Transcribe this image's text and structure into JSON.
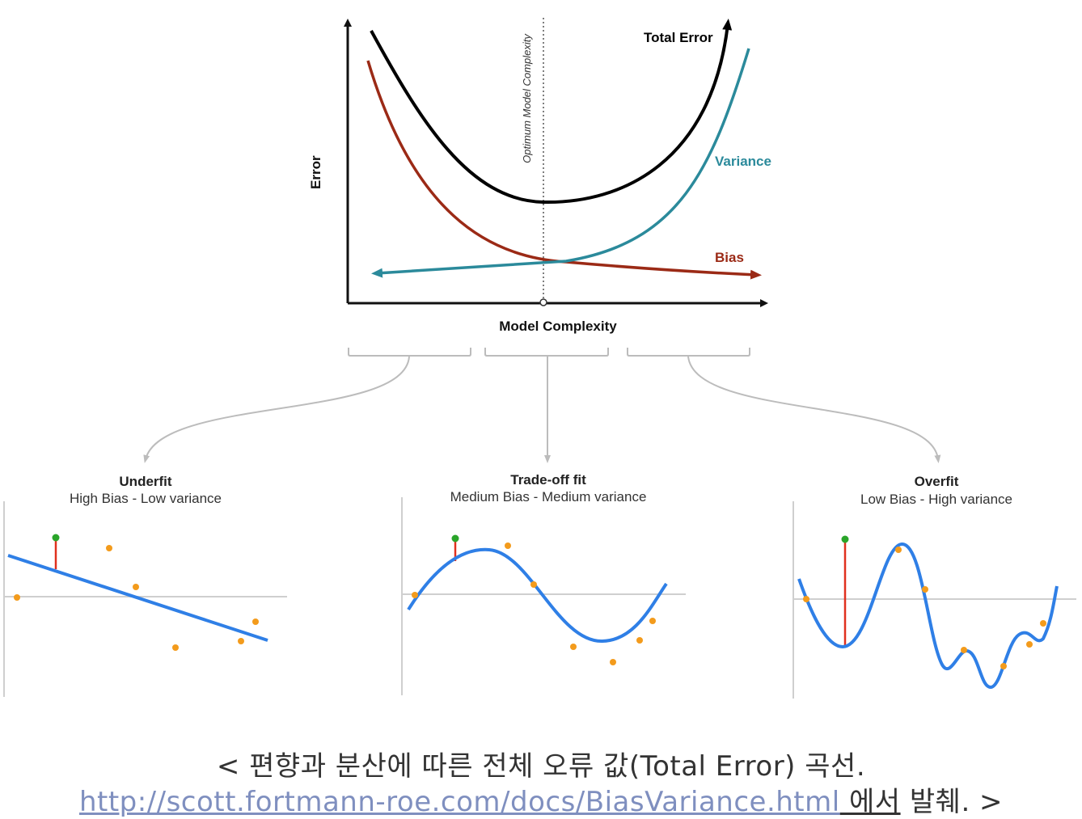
{
  "colors": {
    "total": "#000000",
    "bias": "#9b2a16",
    "variance": "#2b8a9b",
    "fit_line": "#2f7fe6",
    "points": "#f39b1c",
    "green_point": "#2aa52a",
    "residual": "#e0301e",
    "axis": "#111111",
    "connector": "#bcbcbc"
  },
  "chart_data": {
    "type": "line",
    "title": "",
    "xlabel": "Model Complexity",
    "ylabel": "Error",
    "optimum_label": "Optimum Model Complexity",
    "series": [
      {
        "name": "Total Error"
      },
      {
        "name": "Variance"
      },
      {
        "name": "Bias"
      }
    ]
  },
  "panels": [
    {
      "title": "Underfit",
      "subtitle": "High Bias - Low variance"
    },
    {
      "title": "Trade-off fit",
      "subtitle": "Medium Bias - Medium variance"
    },
    {
      "title": "Overfit",
      "subtitle": "Low Bias - High variance"
    }
  ],
  "caption": {
    "line1": "< 편향과 분산에 따른 전체 오류 값(Total Error) 곡선.",
    "link": "http://scott.fortmann-roe.com/docs/BiasVariance.html",
    "suffix_underlined": " 에서",
    "suffix": " 발췌. >"
  }
}
